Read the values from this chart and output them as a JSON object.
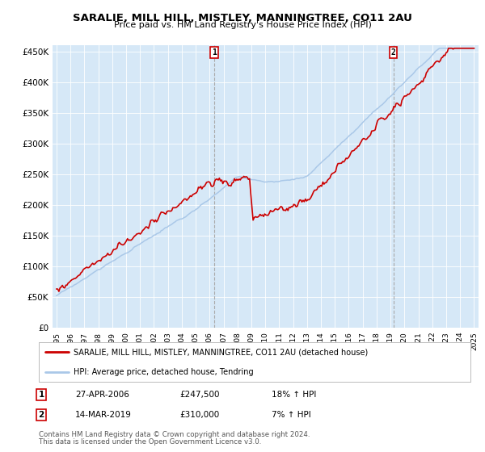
{
  "title": "SARALIE, MILL HILL, MISTLEY, MANNINGTREE, CO11 2AU",
  "subtitle": "Price paid vs. HM Land Registry's House Price Index (HPI)",
  "ylim": [
    0,
    460000
  ],
  "yticks": [
    0,
    50000,
    100000,
    150000,
    200000,
    250000,
    300000,
    350000,
    400000,
    450000
  ],
  "ytick_labels": [
    "£0",
    "£50K",
    "£100K",
    "£150K",
    "£200K",
    "£250K",
    "£300K",
    "£350K",
    "£400K",
    "£450K"
  ],
  "plot_bg_color": "#d6e8f7",
  "grid_color": "#ffffff",
  "sale1_year": 2006.32,
  "sale1_price": 247500,
  "sale1_label": "1",
  "sale1_date": "27-APR-2006",
  "sale1_price_str": "£247,500",
  "sale1_hpi_change": "18% ↑ HPI",
  "sale2_year": 2019.2,
  "sale2_price": 310000,
  "sale2_label": "2",
  "sale2_date": "14-MAR-2019",
  "sale2_price_str": "£310,000",
  "sale2_hpi_change": "7% ↑ HPI",
  "legend_line1": "SARALIE, MILL HILL, MISTLEY, MANNINGTREE, CO11 2AU (detached house)",
  "legend_line2": "HPI: Average price, detached house, Tendring",
  "footer1": "Contains HM Land Registry data © Crown copyright and database right 2024.",
  "footer2": "This data is licensed under the Open Government Licence v3.0.",
  "red_color": "#cc0000",
  "blue_color": "#aac8e8"
}
